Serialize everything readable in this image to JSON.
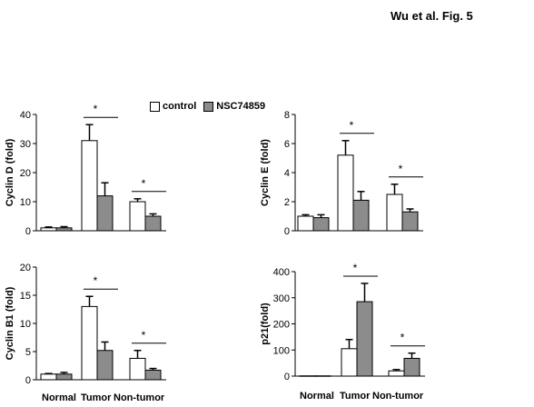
{
  "figure_label": "Wu et al. Fig. 5",
  "legend": [
    {
      "name": "control",
      "color": "#ffffff"
    },
    {
      "name": "NSC74859",
      "color": "#8c8c8c"
    }
  ],
  "group_labels": {
    "normal": "Normal",
    "tumor": "Tumor",
    "nontumor": "Non-tumor"
  },
  "significance_marker": "*",
  "chart_data": [
    {
      "type": "bar",
      "ylabel": "Cyclin D (fold)",
      "ylim": [
        0,
        40
      ],
      "yticks": [
        0,
        10,
        20,
        30,
        40
      ],
      "categories": [
        "Normal",
        "Tumor",
        "Non-tumor"
      ],
      "series": [
        {
          "name": "control",
          "values": [
            1,
            31,
            10
          ],
          "errors": [
            0.3,
            5.5,
            1
          ]
        },
        {
          "name": "NSC74859",
          "values": [
            1,
            12,
            5
          ],
          "errors": [
            0.4,
            4.5,
            0.8
          ]
        }
      ],
      "significance": [
        1,
        2
      ]
    },
    {
      "type": "bar",
      "ylabel": "Cyclin E (fold)",
      "ylim": [
        0,
        8
      ],
      "yticks": [
        0,
        2,
        4,
        6,
        8
      ],
      "categories": [
        "Normal",
        "Tumor",
        "Non-tumor"
      ],
      "series": [
        {
          "name": "control",
          "values": [
            1,
            5.2,
            2.5
          ],
          "errors": [
            0.1,
            1,
            0.7
          ]
        },
        {
          "name": "NSC74859",
          "values": [
            0.9,
            2.1,
            1.3
          ],
          "errors": [
            0.2,
            0.6,
            0.2
          ]
        }
      ],
      "significance": [
        1,
        2
      ]
    },
    {
      "type": "bar",
      "ylabel": "Cyclin B1 (fold)",
      "ylim": [
        0,
        20
      ],
      "yticks": [
        0,
        5,
        10,
        15,
        20
      ],
      "categories": [
        "Normal",
        "Tumor",
        "Non-tumor"
      ],
      "series": [
        {
          "name": "control",
          "values": [
            1,
            13,
            3.8
          ],
          "errors": [
            0.1,
            1.8,
            1.4
          ]
        },
        {
          "name": "NSC74859",
          "values": [
            1,
            5.2,
            1.7
          ],
          "errors": [
            0.3,
            1.5,
            0.3
          ]
        }
      ],
      "significance": [
        1,
        2
      ]
    },
    {
      "type": "bar",
      "ylabel": "p21(fold)",
      "ylim": [
        0,
        400
      ],
      "yticks": [
        0,
        100,
        200,
        300,
        400
      ],
      "categories": [
        "Normal",
        "Tumor",
        "Non-tumor"
      ],
      "series": [
        {
          "name": "control",
          "values": [
            1,
            105,
            20
          ],
          "errors": [
            0,
            35,
            5
          ]
        },
        {
          "name": "NSC74859",
          "values": [
            1,
            285,
            68
          ],
          "errors": [
            0,
            70,
            20
          ]
        }
      ],
      "significance": [
        1,
        2
      ]
    }
  ]
}
